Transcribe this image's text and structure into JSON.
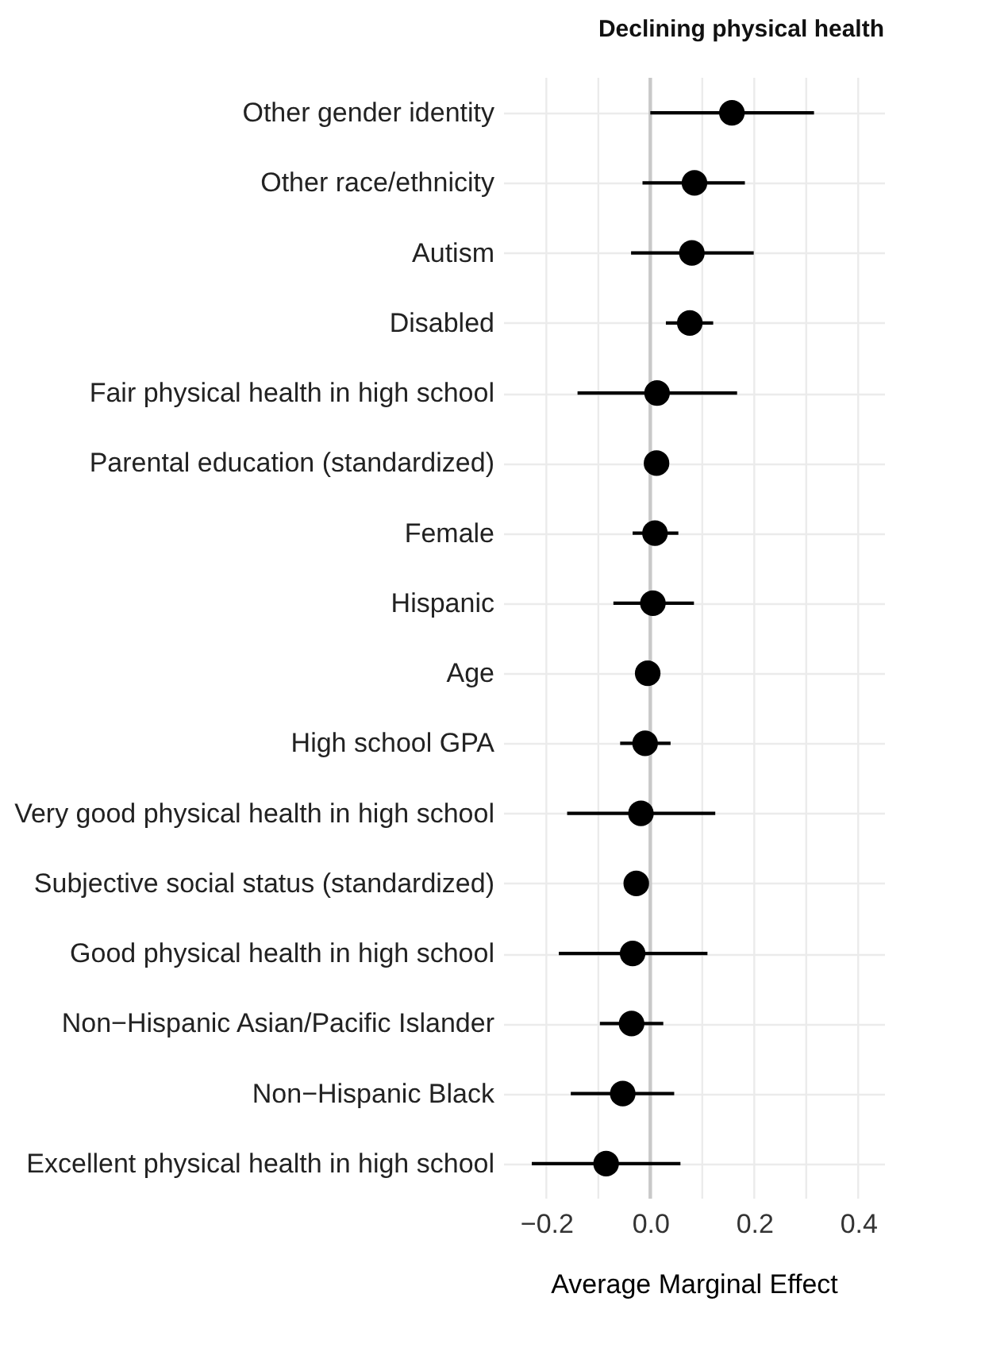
{
  "chart_data": {
    "type": "scatter",
    "title": "Declining physical health",
    "xlabel": "Average Marginal Effect",
    "orientation": "horizontal",
    "categories": [
      "Other gender identity",
      "Other race/ethnicity",
      "Autism",
      "Disabled",
      "Fair physical health in high school",
      "Parental education (standardized)",
      "Female",
      "Hispanic",
      "Age",
      "High school GPA",
      "Very good physical health in high school",
      "Subjective social status (standardized)",
      "Good physical health in high school",
      "Non−Hispanic Asian/Pacific Islander",
      "Non−Hispanic Black",
      "Excellent physical health in high school"
    ],
    "series": [
      {
        "color": "#000000",
        "values": [
          0.157,
          0.085,
          0.08,
          0.076,
          0.013,
          0.012,
          0.009,
          0.005,
          -0.005,
          -0.01,
          -0.018,
          -0.027,
          -0.034,
          -0.036,
          -0.053,
          -0.085
        ],
        "errors": [
          [
            0.0,
            0.315
          ],
          [
            -0.015,
            0.182
          ],
          [
            -0.037,
            0.199
          ],
          [
            0.03,
            0.121
          ],
          [
            -0.14,
            0.167
          ],
          null,
          [
            -0.034,
            0.054
          ],
          [
            -0.071,
            0.084
          ],
          null,
          [
            -0.058,
            0.039
          ],
          [
            -0.16,
            0.125
          ],
          null,
          [
            -0.176,
            0.11
          ],
          [
            -0.097,
            0.025
          ],
          [
            -0.153,
            0.046
          ],
          [
            -0.228,
            0.058
          ]
        ]
      }
    ],
    "xlim": [
      -0.283,
      0.45
    ],
    "xticks": [
      {
        "value": -0.2,
        "label": "−0.2"
      },
      {
        "value": -0.1,
        "label": null
      },
      {
        "value": 0,
        "label": "0.0"
      },
      {
        "value": 0.1,
        "label": null
      },
      {
        "value": 0.2,
        "label": "0.2"
      },
      {
        "value": 0.3,
        "label": null
      },
      {
        "value": 0.4,
        "label": "0.4"
      }
    ],
    "ref_lines": [
      {
        "axis": "x",
        "value": 0,
        "color": "#c8c8c8"
      }
    ],
    "grid": true,
    "marker": "circle"
  }
}
